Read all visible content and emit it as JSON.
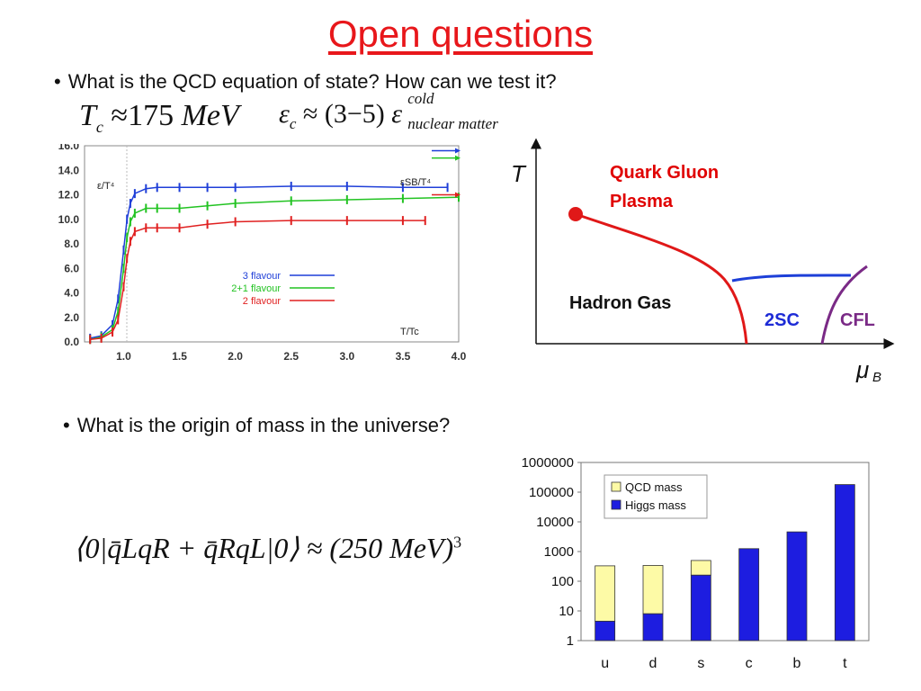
{
  "slide": {
    "title": "Open questions",
    "bullets": [
      "What is the QCD equation of state? How can we test it?",
      "What is the origin of mass in the universe?"
    ]
  },
  "equations": {
    "tc": {
      "lhs": "T",
      "sub": "c",
      "rel": "≈175",
      "unit": "MeV"
    },
    "eps": {
      "lhs": "ε",
      "sub": "c",
      "rel": "≈ (3−5)",
      "rhs": "ε",
      "sup": "cold",
      "rsub": "nuclear matter"
    },
    "condensate": {
      "text": "⟨0|q̄LqR + q̄RqL|0⟩ ≈ (250 MeV)",
      "sup": "3"
    }
  },
  "phase_diagram": {
    "y_label": "T",
    "x_label": "μ",
    "x_sub": "B",
    "region_qgp": [
      "Quark Gluon",
      "Plasma"
    ],
    "region_hadron": "Hadron Gas",
    "region_2sc": "2SC",
    "region_cfl": "CFL",
    "colors": {
      "qgp": "#e00000",
      "2sc": "#1d2bd6",
      "cfl": "#7a2a86",
      "line_red": "#e01818",
      "line_blue": "#1d3fd8",
      "line_purple": "#7a2a86"
    }
  },
  "chart_data": [
    {
      "type": "line",
      "y_label": "ε/T⁴",
      "x_label": "T/Tc",
      "sb_label": "εSB/T⁴",
      "x_ticks": [
        "1.0",
        "1.5",
        "2.0",
        "2.5",
        "3.0",
        "3.5",
        "4.0"
      ],
      "y_ticks": [
        "0.0",
        "2.0",
        "4.0",
        "6.0",
        "8.0",
        "10.0",
        "12.0",
        "14.0",
        "16.0"
      ],
      "xlim": [
        0.65,
        4.0
      ],
      "ylim": [
        0,
        16
      ],
      "series": [
        {
          "name": "3 flavour",
          "color": "#1f3fd8",
          "x": [
            0.7,
            0.8,
            0.9,
            0.95,
            1.0,
            1.03,
            1.06,
            1.1,
            1.2,
            1.3,
            1.5,
            1.75,
            2.0,
            2.5,
            3.0,
            3.5,
            3.9
          ],
          "y": [
            0.3,
            0.5,
            1.4,
            3.5,
            7.5,
            10.0,
            11.3,
            12.1,
            12.5,
            12.6,
            12.6,
            12.6,
            12.6,
            12.7,
            12.7,
            12.6,
            12.6
          ]
        },
        {
          "name": "2+1 flavour",
          "color": "#22c322",
          "x": [
            0.7,
            0.8,
            0.9,
            0.95,
            1.0,
            1.03,
            1.06,
            1.1,
            1.2,
            1.3,
            1.5,
            1.75,
            2.0,
            2.5,
            3.0,
            3.5,
            4.0
          ],
          "y": [
            0.2,
            0.4,
            1.0,
            2.5,
            6.0,
            8.5,
            9.8,
            10.5,
            10.9,
            10.9,
            10.9,
            11.1,
            11.3,
            11.5,
            11.6,
            11.7,
            11.8
          ]
        },
        {
          "name": "2 flavour",
          "color": "#e02020",
          "x": [
            0.7,
            0.8,
            0.9,
            0.95,
            1.0,
            1.03,
            1.06,
            1.1,
            1.2,
            1.3,
            1.5,
            1.75,
            2.0,
            2.5,
            3.0,
            3.5,
            3.7
          ],
          "y": [
            0.2,
            0.3,
            0.8,
            1.8,
            4.5,
            6.8,
            8.2,
            9.0,
            9.3,
            9.3,
            9.3,
            9.6,
            9.8,
            9.9,
            9.9,
            9.9,
            9.9
          ]
        }
      ],
      "sb_arrows": [
        {
          "color": "#1f3fd8",
          "y": 15.6
        },
        {
          "color": "#22c322",
          "y": 15.0
        },
        {
          "color": "#e02020",
          "y": 12.0
        }
      ]
    },
    {
      "type": "bar",
      "yscale": "log",
      "ylim": [
        1,
        1000000
      ],
      "y_ticks": [
        "1",
        "10",
        "100",
        "1000",
        "10000",
        "100000",
        "1000000"
      ],
      "categories": [
        "u",
        "d",
        "s",
        "c",
        "b",
        "t"
      ],
      "series": [
        {
          "name": "QCD mass",
          "color": "#fdfaa6",
          "values": [
            330,
            340,
            500,
            0,
            0,
            0
          ]
        },
        {
          "name": "Higgs mass",
          "color": "#1d1de0",
          "values": [
            4.5,
            8,
            160,
            1250,
            4600,
            180000
          ]
        }
      ]
    }
  ]
}
